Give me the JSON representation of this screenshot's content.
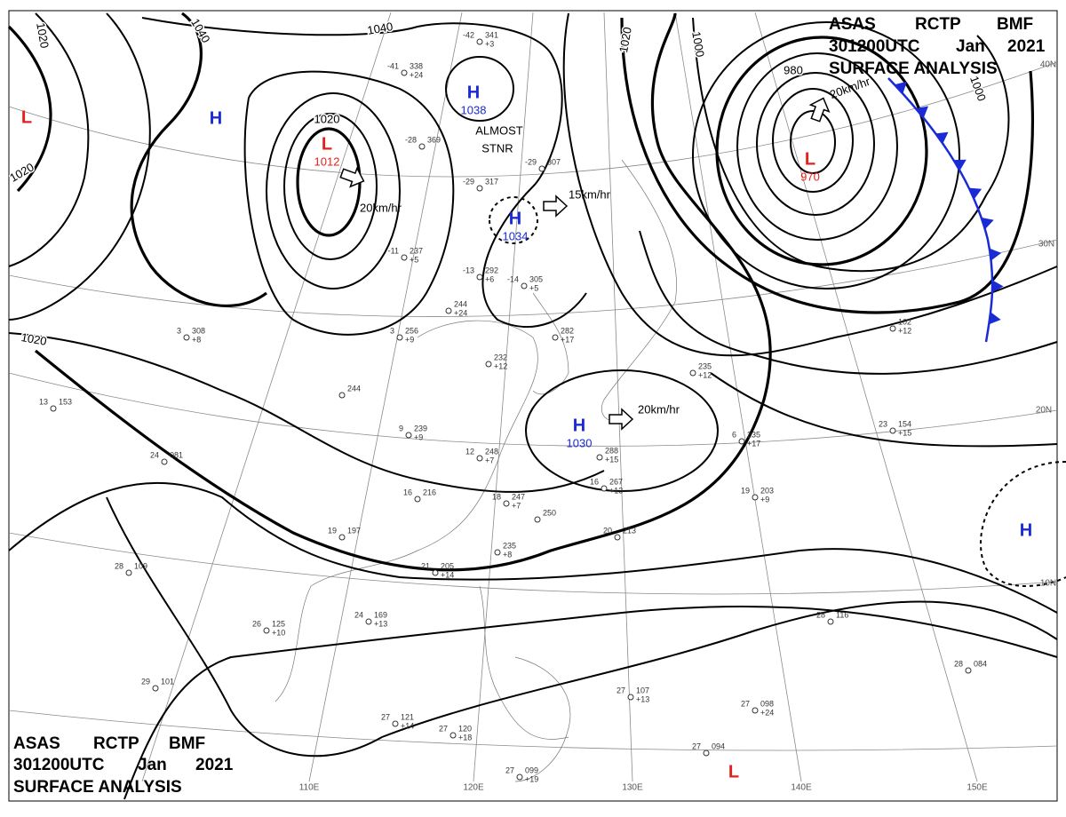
{
  "header": {
    "agency": "ASAS",
    "station": "RCTP",
    "office": "BMF",
    "time": "301200UTC",
    "month": "Jan",
    "year": "2021",
    "product": "SURFACE ANALYSIS"
  },
  "centers": [
    {
      "type": "H",
      "pressure": 1038
    },
    {
      "type": "L",
      "pressure": 1012
    },
    {
      "type": "H",
      "pressure": 1034
    },
    {
      "type": "L",
      "pressure": 970
    },
    {
      "type": "H",
      "pressure": 1030
    },
    {
      "type": "H"
    },
    {
      "type": "L"
    },
    {
      "type": "H"
    },
    {
      "type": "L"
    }
  ],
  "center_colors": {
    "H": "#1a2bd6",
    "L": "#e3211b"
  },
  "front_color": "#1a2bd6",
  "isobar_labels": [
    1020,
    1040,
    1040,
    1020,
    1020,
    1020,
    1020,
    1000,
    980,
    1000
  ],
  "motions": [
    "20km/hr",
    "15km/hr",
    "20km/hr",
    "20km/hr"
  ],
  "note": [
    "ALMOST",
    "STNR"
  ],
  "latitudes": [
    "40N",
    "30N",
    "20N",
    "10N"
  ],
  "longitudes": [
    "110E",
    "120E",
    "130E",
    "140E",
    "150E"
  ],
  "stations": [
    {
      "temp": -42,
      "pressure": 341,
      "tendency": "+3"
    },
    {
      "temp": -41,
      "pressure": 338,
      "tendency": "+24"
    },
    {
      "temp": -28,
      "pressure": 369
    },
    {
      "temp": -29,
      "pressure": 307
    },
    {
      "temp": -29,
      "pressure": 317
    },
    {
      "temp": -11,
      "pressure": 237,
      "tendency": "+5"
    },
    {
      "temp": -13,
      "pressure": 292,
      "tendency": "+6"
    },
    {
      "temp": -14,
      "pressure": 305,
      "tendency": "+5"
    },
    {
      "pressure": 244,
      "tendency": "+24"
    },
    {
      "temp": 3,
      "pressure": 256,
      "tendency": "+9"
    },
    {
      "pressure": 282,
      "tendency": "+17"
    },
    {
      "pressure": 232,
      "tendency": "+12"
    },
    {
      "temp": 9,
      "pressure": 239,
      "tendency": "+9"
    },
    {
      "temp": 12,
      "pressure": 248,
      "tendency": "+7"
    },
    {
      "temp": 16,
      "pressure": 216
    },
    {
      "temp": 18,
      "pressure": 247,
      "tendency": "+7"
    },
    {
      "pressure": 250
    },
    {
      "pressure": 235,
      "tendency": "+8"
    },
    {
      "temp": 21,
      "pressure": 205,
      "tendency": "+14"
    },
    {
      "temp": 19,
      "pressure": 197
    },
    {
      "temp": 24,
      "pressure": 169,
      "tendency": "+13"
    },
    {
      "temp": 26,
      "pressure": 125,
      "tendency": "+10"
    },
    {
      "temp": 29,
      "pressure": 101
    },
    {
      "temp": 27,
      "pressure": 121,
      "tendency": "+14"
    },
    {
      "temp": 27,
      "pressure": 120,
      "tendency": "+18"
    },
    {
      "temp": 27,
      "pressure": "099",
      "tendency": "+19"
    },
    {
      "temp": 27,
      "pressure": "094"
    },
    {
      "temp": 27,
      "pressure": 107,
      "tendency": "+13"
    },
    {
      "temp": 27,
      "pressure": "098",
      "tendency": "+24"
    },
    {
      "temp": 28,
      "pressure": 116
    },
    {
      "temp": 28,
      "pressure": "084"
    },
    {
      "temp": 20,
      "pressure": 213
    },
    {
      "temp": 16,
      "pressure": 267,
      "tendency": "+13"
    },
    {
      "pressure": 288,
      "tendency": "+15"
    },
    {
      "temp": 19,
      "pressure": 203,
      "tendency": "+9"
    },
    {
      "temp": 6,
      "pressure": 235,
      "tendency": "+17"
    },
    {
      "temp": 23,
      "pressure": 154,
      "tendency": "+15"
    },
    {
      "pressure": 102,
      "tendency": "+12"
    },
    {
      "temp": 24,
      "pressure": "081"
    },
    {
      "temp": 13,
      "pressure": 153
    },
    {
      "temp": 28,
      "pressure": 109
    },
    {
      "pressure": 244
    },
    {
      "temp": 3,
      "pressure": 308,
      "tendency": "+8"
    },
    {
      "pressure": 235,
      "tendency": "+12"
    }
  ]
}
